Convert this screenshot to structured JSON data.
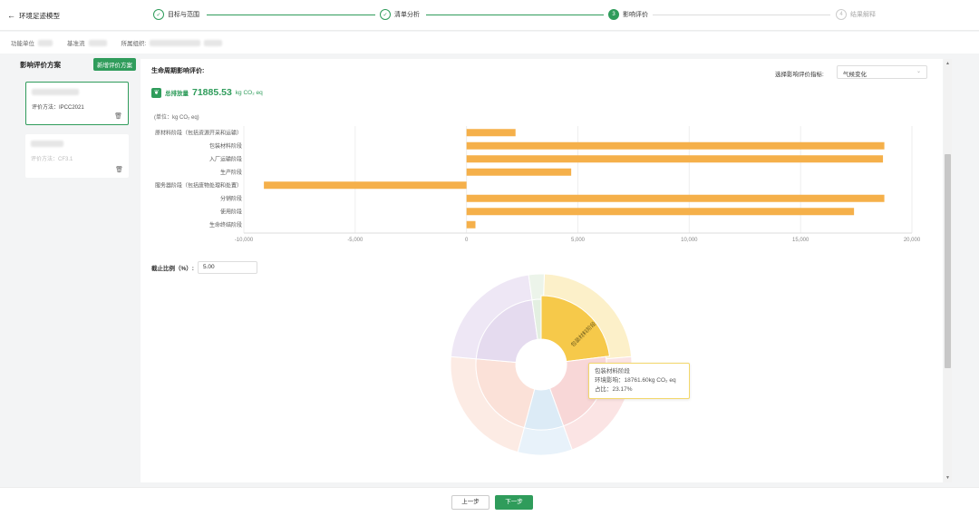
{
  "header": {
    "back_label": "环境足迹模型",
    "steps": [
      {
        "index": "1",
        "label": "目标与范围",
        "state": "done"
      },
      {
        "index": "2",
        "label": "清单分析",
        "state": "done"
      },
      {
        "index": "3",
        "label": "影响评价",
        "state": "active"
      },
      {
        "index": "4",
        "label": "结果解释",
        "state": "pending"
      }
    ]
  },
  "info": {
    "functional_unit_label": "功能单位",
    "reference_flow_label": "基准流",
    "organization_label": "所属组织:"
  },
  "sidebar": {
    "title": "影响评价方案",
    "add_button": "新增评价方案",
    "schemes": [
      {
        "method": "评价方法：IPCC2021",
        "selected": true
      },
      {
        "method": "评价方法：CF3.1",
        "selected": false
      }
    ]
  },
  "main": {
    "title": "生命周期影响评价:",
    "indicator_label": "选择影响评价指标:",
    "indicator_value": "气候变化",
    "total_label": "总排放量",
    "total_value": "71885.53",
    "total_unit": "kg CO₂ eq",
    "unit_note": "(单位：kg CO₂ eq)",
    "cutoff_label": "截止比例（%）:",
    "cutoff_value": "5.00"
  },
  "chart_data": {
    "type": "bar",
    "orientation": "horizontal",
    "categories": [
      "原材料阶段（包括资源开采和运输）",
      "包装材料阶段",
      "入厂运输阶段",
      "生产阶段",
      "服务器阶段（包括废物处理和处置）",
      "分销阶段",
      "使用阶段",
      "生命终结阶段"
    ],
    "values": [
      2200,
      18761.6,
      18700,
      4700,
      -9100,
      18761.6,
      17400,
      400
    ],
    "xlim": [
      -10000,
      20000
    ],
    "ticks": [
      -10000,
      -5000,
      0,
      5000,
      10000,
      15000,
      20000
    ],
    "tick_labels": [
      "-10,000",
      "-5,000",
      "0",
      "5,000",
      "10,000",
      "15,000",
      "20,000"
    ],
    "grid": true,
    "color": "#f5b04a"
  },
  "sunburst": {
    "type": "sunburst",
    "highlight_label": "包装材料阶段",
    "tooltip": {
      "name": "包装材料阶段",
      "impact": "环境影响：18761.60kg CO₂ eq",
      "share": "占比：23.17%"
    }
  },
  "footer": {
    "prev_label": "上一步",
    "next_label": "下一步"
  }
}
